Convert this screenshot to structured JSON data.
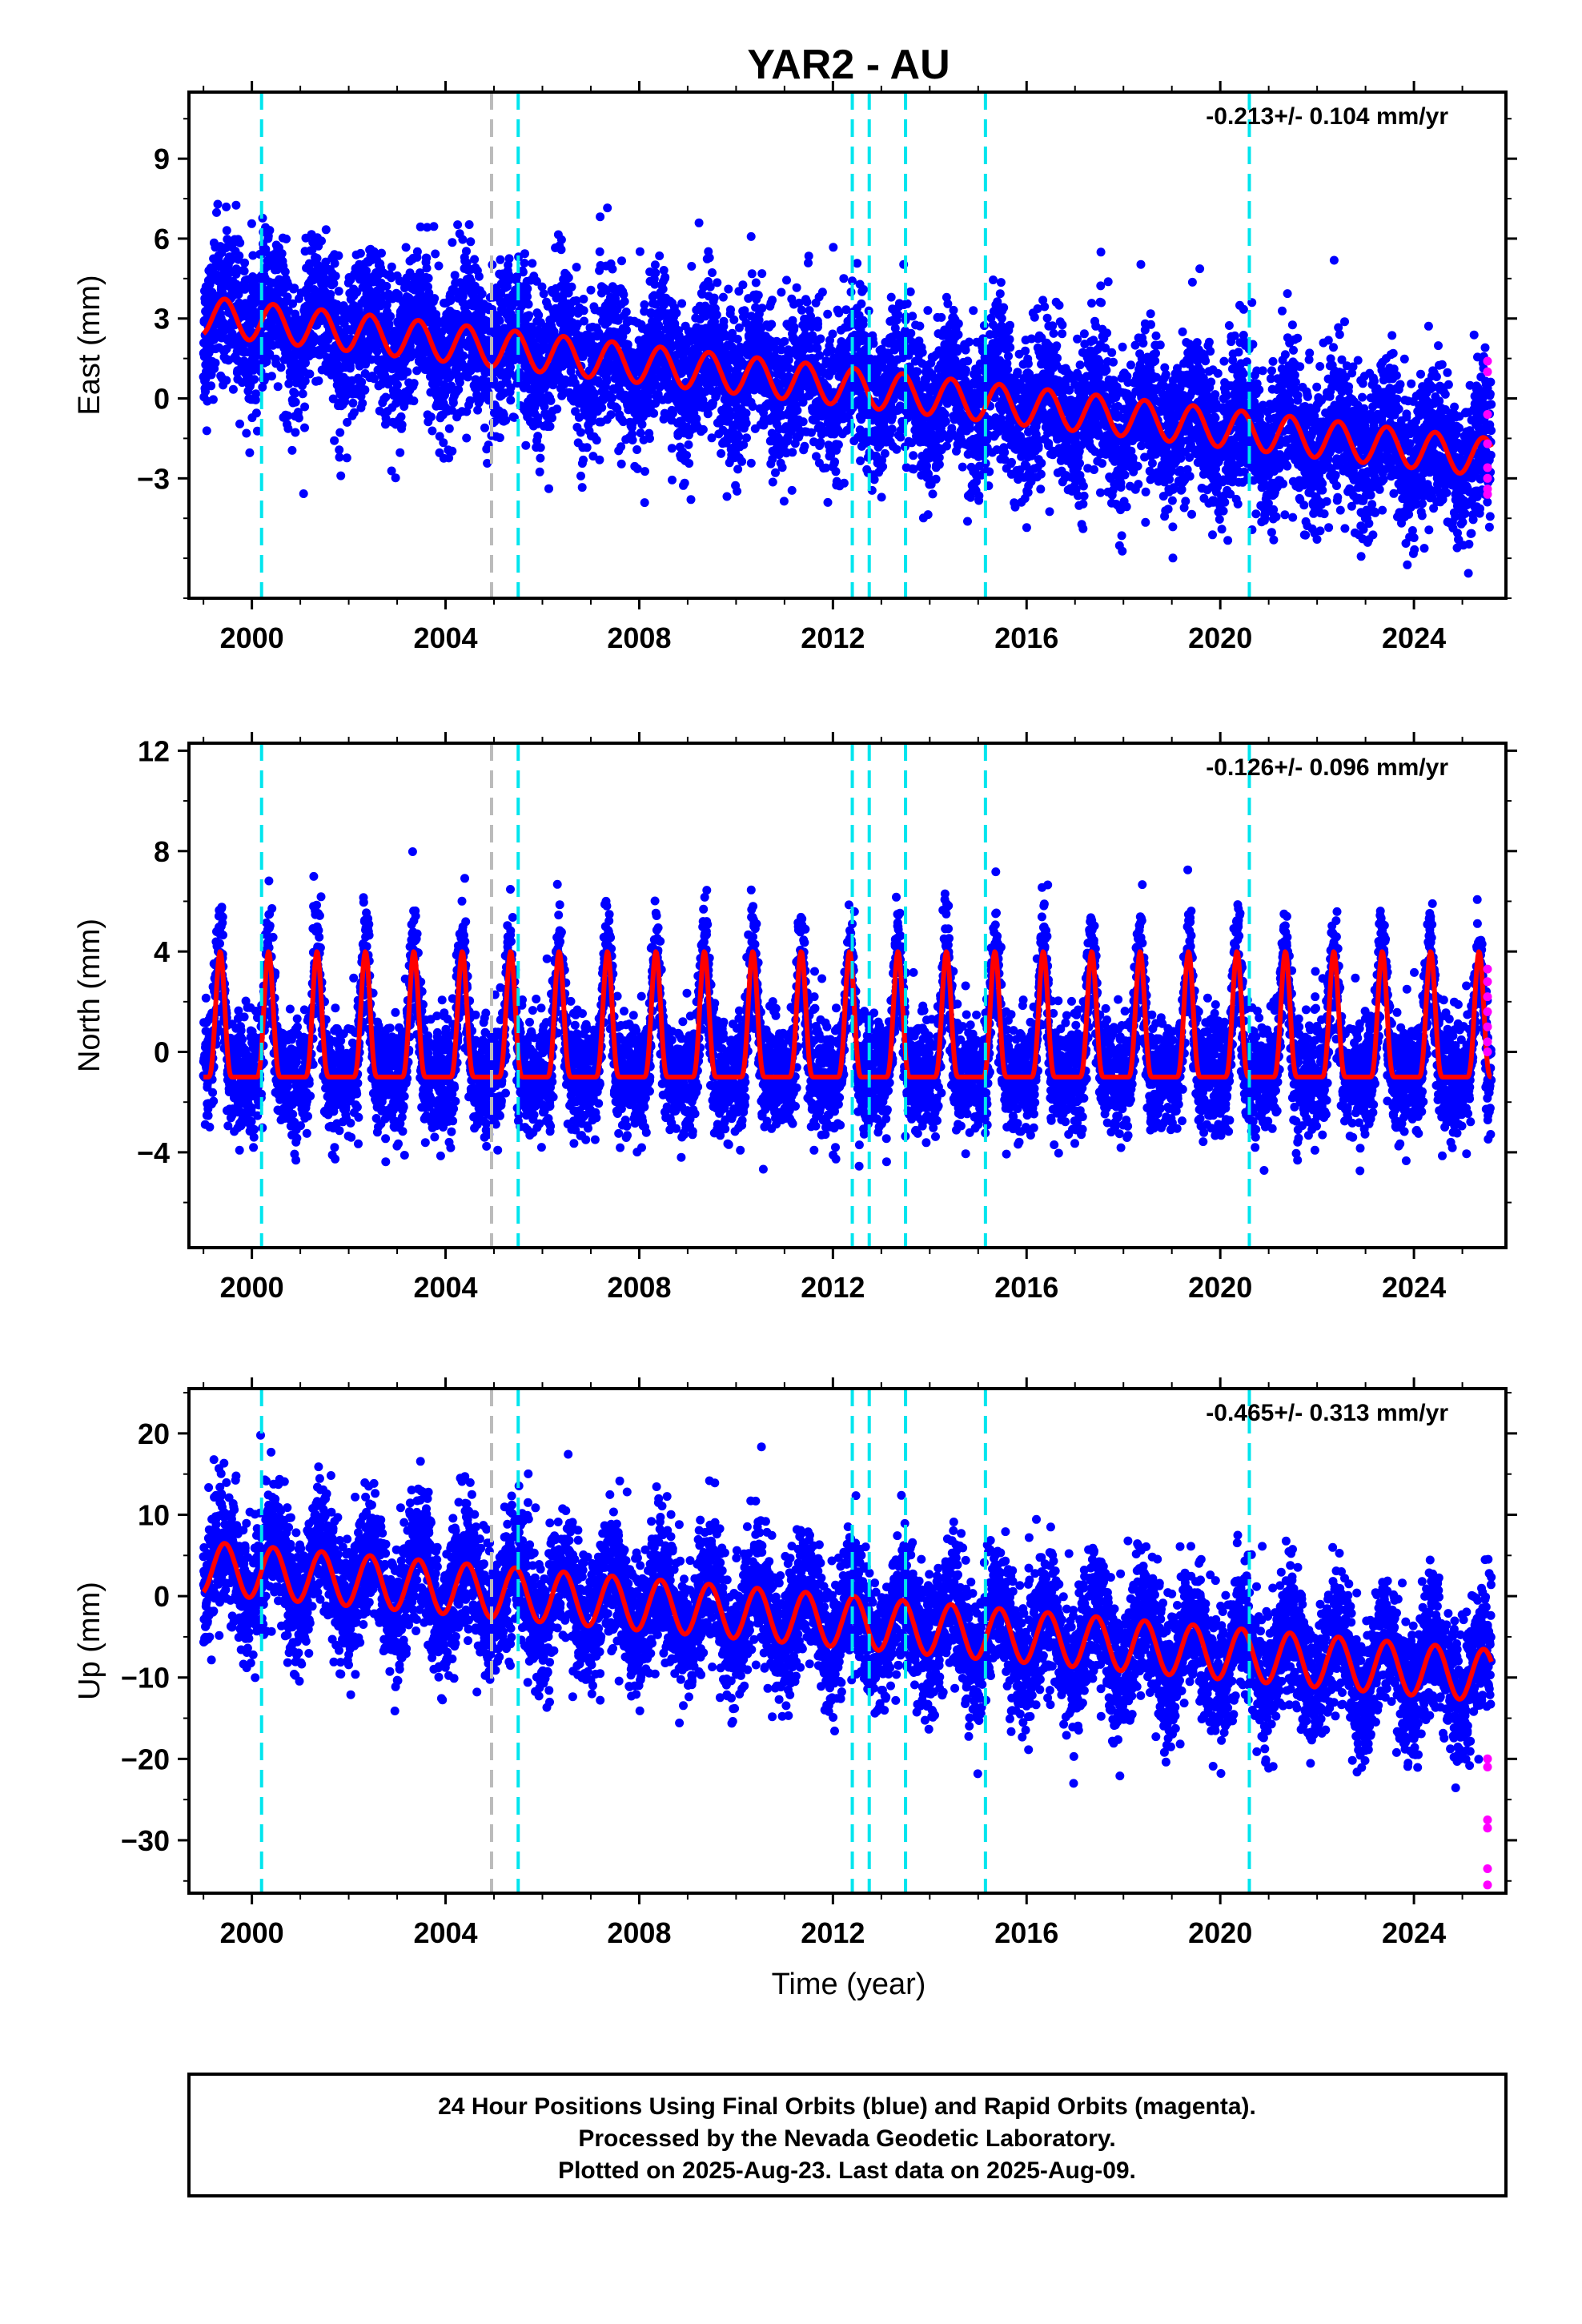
{
  "title": "YAR2 - AU",
  "xlabel": "Time (year)",
  "footer": {
    "line1": "24 Hour Positions Using Final Orbits (blue) and Rapid Orbits (magenta).",
    "line2": "Processed by the Nevada Geodetic Laboratory.",
    "line3": "Plotted on 2025-Aug-23. Last data on 2025-Aug-09."
  },
  "colors": {
    "final": "#0000ff",
    "rapid": "#ff00ff",
    "model": "#ff0000",
    "equipment_change": "#00e5ee",
    "other_event": "#bbbbbb"
  },
  "chart_data": [
    {
      "type": "scatter",
      "component": "East",
      "ylabel": "East (mm)",
      "rate_text": "-0.213+/- 0.104 mm/yr",
      "rate_mm_per_yr": -0.213,
      "rate_sigma": 0.104,
      "xlim": [
        1998.7,
        2025.9
      ],
      "ylim": [
        -7.5,
        11.5
      ],
      "yticks": [
        -3,
        0,
        3,
        6,
        9
      ],
      "ytick_labels": [
        "−3",
        "0",
        "3",
        "6",
        "9"
      ],
      "xticks": [
        2000,
        2004,
        2008,
        2012,
        2016,
        2020,
        2024
      ],
      "xtick_labels": [
        "2000",
        "2004",
        "2008",
        "2012",
        "2016",
        "2020",
        "2024"
      ],
      "model": {
        "offset_2000": 2.9,
        "trend_mm_per_yr": -0.2,
        "annual_amplitude": 0.9,
        "scatter": 1.4
      },
      "rapid_values": [
        1.4,
        1.0,
        -0.6,
        -1.7,
        -2.6,
        -3.0,
        -3.4,
        -3.6
      ]
    },
    {
      "type": "scatter",
      "component": "North",
      "ylabel": "North (mm)",
      "rate_text": "-0.126+/- 0.096 mm/yr",
      "rate_mm_per_yr": -0.126,
      "rate_sigma": 0.096,
      "xlim": [
        1998.7,
        2025.9
      ],
      "ylim": [
        -7.8,
        12.3
      ],
      "yticks": [
        -4,
        0,
        4,
        8,
        12
      ],
      "ytick_labels": [
        "−4",
        "0",
        "4",
        "8",
        "12"
      ],
      "xticks": [
        2000,
        2004,
        2008,
        2012,
        2016,
        2020,
        2024
      ],
      "xtick_labels": [
        "2000",
        "2004",
        "2008",
        "2012",
        "2016",
        "2020",
        "2024"
      ],
      "model": {
        "offset_2000": 0.5,
        "trend_mm_per_yr": 0.0,
        "annual_amplitude": 2.5,
        "scatter": 1.1
      },
      "rapid_values": [
        3.3,
        2.8,
        2.2,
        1.6,
        1.0,
        0.4,
        0.0
      ]
    },
    {
      "type": "scatter",
      "component": "Up",
      "ylabel": "Up (mm)",
      "rate_text": "-0.465+/- 0.313 mm/yr",
      "rate_mm_per_yr": -0.465,
      "rate_sigma": 0.313,
      "xlim": [
        1998.7,
        2025.9
      ],
      "ylim": [
        -36.5,
        25.5
      ],
      "yticks": [
        -30,
        -20,
        -10,
        0,
        10,
        20
      ],
      "ytick_labels": [
        "−30",
        "−20",
        "−10",
        "0",
        "10",
        "20"
      ],
      "xticks": [
        2000,
        2004,
        2008,
        2012,
        2016,
        2020,
        2024
      ],
      "xtick_labels": [
        "2000",
        "2004",
        "2008",
        "2012",
        "2016",
        "2020",
        "2024"
      ],
      "model": {
        "offset_2000": 3.0,
        "trend_mm_per_yr": -0.5,
        "annual_amplitude": 4.0,
        "scatter": 4.0
      },
      "rapid_values": [
        -20.0,
        -21.0,
        -27.5,
        -28.5,
        -33.5,
        -35.5
      ]
    }
  ],
  "events": {
    "equipment_change_years": [
      2000.2,
      2005.5,
      2012.4,
      2012.75,
      2013.5,
      2015.15,
      2020.6
    ],
    "other_event_years": [
      2004.95
    ]
  },
  "data_span": {
    "start": 1999.0,
    "end": 2025.6
  }
}
